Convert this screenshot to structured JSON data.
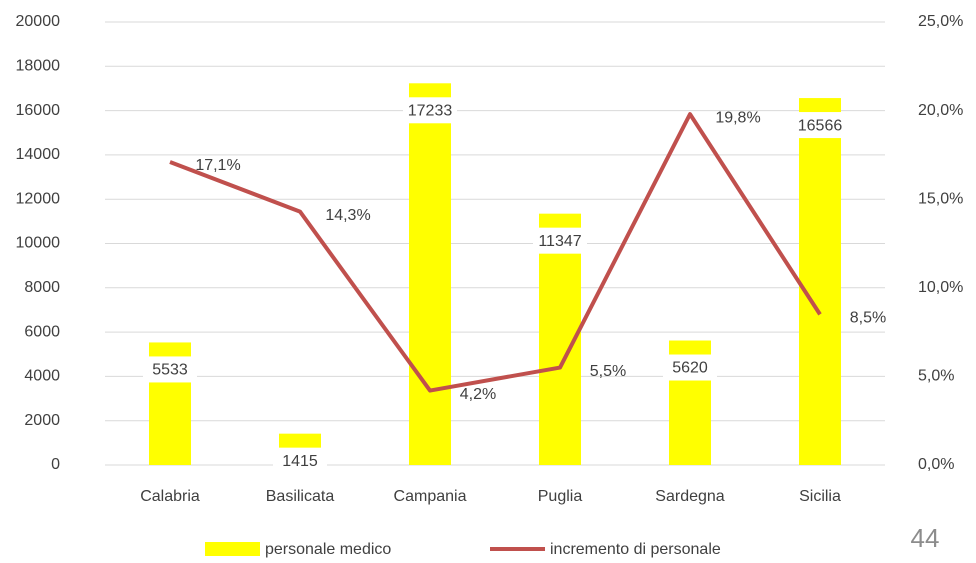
{
  "chart_data": {
    "type": "bar_line",
    "categories": [
      "Calabria",
      "Basilicata",
      "Campania",
      "Puglia",
      "Sardegna",
      "Sicilia"
    ],
    "series": [
      {
        "name": "personale medico",
        "type": "bar",
        "color": "#ffff00",
        "values": [
          5533,
          1415,
          17233,
          11347,
          5620,
          16566
        ]
      },
      {
        "name": "incremento di personale",
        "type": "line",
        "axis": "y2",
        "color": "#c0504d",
        "values": [
          17.1,
          14.3,
          4.2,
          5.5,
          19.8,
          8.5
        ],
        "value_labels": [
          "17,1%",
          "14,3%",
          "4,2%",
          "5,5%",
          "19,8%",
          "8,5%"
        ]
      }
    ],
    "ylim": [
      0,
      20000
    ],
    "yticks": [
      0,
      2000,
      4000,
      6000,
      8000,
      10000,
      12000,
      14000,
      16000,
      18000,
      20000
    ],
    "y2lim": [
      0,
      25
    ],
    "y2ticks": [
      {
        "value": 0,
        "label": "0,0%"
      },
      {
        "value": 5,
        "label": "5,0%"
      },
      {
        "value": 10,
        "label": "10,0%"
      },
      {
        "value": 15,
        "label": "15,0%"
      },
      {
        "value": 20,
        "label": "20,0%"
      },
      {
        "value": 25,
        "label": "25,0%"
      }
    ],
    "grid": true,
    "legend": "bottom"
  },
  "slide_number": "44"
}
